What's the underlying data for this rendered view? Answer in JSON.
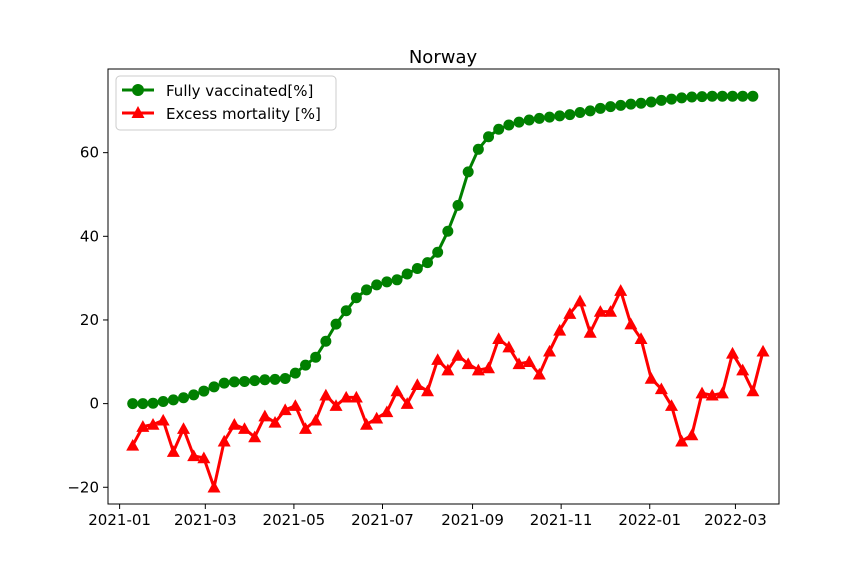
{
  "chart_data": {
    "type": "line",
    "title": "Norway",
    "xlabel": "",
    "ylabel": "",
    "x_range": [
      "2020-12-24",
      "2022-03-31"
    ],
    "ylim": [
      -24,
      80
    ],
    "x_ticks": [
      "2021-01",
      "2021-03",
      "2021-05",
      "2021-07",
      "2021-09",
      "2021-11",
      "2022-01",
      "2022-03"
    ],
    "x_tick_dates": [
      "2021-01-01",
      "2021-03-01",
      "2021-05-01",
      "2021-07-01",
      "2021-09-01",
      "2021-11-01",
      "2022-01-01",
      "2022-03-01"
    ],
    "y_ticks": [
      -20,
      0,
      20,
      40,
      60
    ],
    "y_tick_labels": [
      "−20",
      "0",
      "20",
      "40",
      "60"
    ],
    "grid": false,
    "legend_position": "top-left",
    "series": [
      {
        "name": "Fully vaccinated[%]",
        "color": "#008000",
        "marker": "circle",
        "start_date": "2021-01-10",
        "step_days": 7,
        "values": [
          0,
          0,
          0.1,
          0.5,
          0.9,
          1.4,
          2.1,
          3.0,
          4.0,
          4.9,
          5.2,
          5.3,
          5.5,
          5.7,
          5.8,
          6.0,
          7.3,
          9.2,
          11.1,
          14.9,
          19.0,
          22.2,
          25.3,
          27.2,
          28.4,
          29.1,
          29.6,
          31.0,
          32.3,
          33.7,
          36.2,
          41.2,
          47.4,
          55.4,
          60.8,
          63.8,
          65.6,
          66.6,
          67.3,
          67.8,
          68.2,
          68.5,
          68.8,
          69.1,
          69.6,
          70.0,
          70.6,
          71.0,
          71.3,
          71.6,
          71.8,
          72.1,
          72.5,
          72.8,
          73.1,
          73.3,
          73.4,
          73.5,
          73.5,
          73.5,
          73.5,
          73.5
        ]
      },
      {
        "name": "Excess mortality [%]",
        "color": "#ff0000",
        "marker": "triangle",
        "start_date": "2021-01-10",
        "step_days": 7,
        "values": [
          -10.0,
          -5.5,
          -5.0,
          -4.0,
          -11.5,
          -6.0,
          -12.5,
          -13.0,
          -20.0,
          -9.0,
          -5.0,
          -6.0,
          -8.0,
          -3.0,
          -4.5,
          -1.5,
          -0.5,
          -6.0,
          -4.0,
          2.0,
          -0.5,
          1.5,
          1.5,
          -5.0,
          -3.5,
          -2.0,
          3.0,
          0,
          4.5,
          3.0,
          10.5,
          8.0,
          11.5,
          9.5,
          8.0,
          8.5,
          15.5,
          13.5,
          9.5,
          10.0,
          7.0,
          12.5,
          17.5,
          21.5,
          24.5,
          17.0,
          22.0,
          22.0,
          27.0,
          19.0,
          15.5,
          6.0,
          3.5,
          -0.5,
          -9.0,
          -7.5,
          2.5,
          2.0,
          2.5,
          12.0,
          8.0,
          3.0,
          12.5
        ]
      }
    ]
  }
}
